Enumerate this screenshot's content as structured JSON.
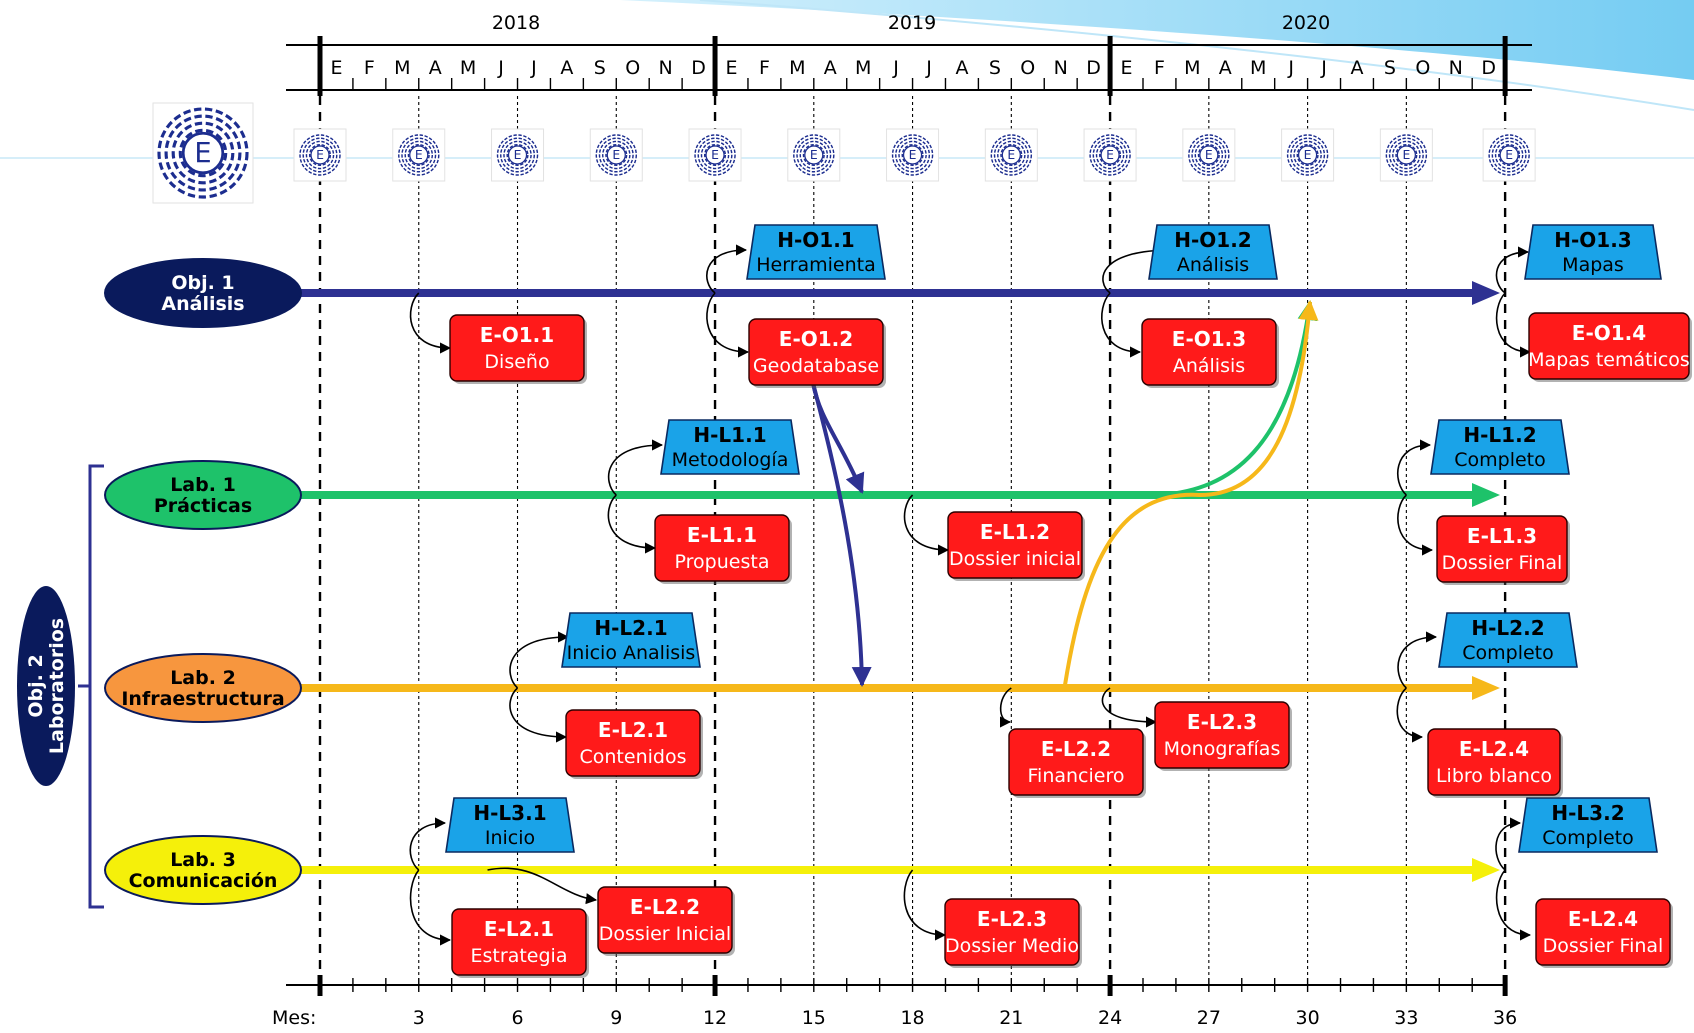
{
  "timeline": {
    "years": [
      "2018",
      "2019",
      "2020"
    ],
    "months": [
      "E",
      "F",
      "M",
      "A",
      "M",
      "J",
      "J",
      "A",
      "S",
      "O",
      "N",
      "D",
      "E",
      "F",
      "M",
      "A",
      "M",
      "J",
      "J",
      "A",
      "S",
      "O",
      "N",
      "D",
      "E",
      "F",
      "M",
      "A",
      "M",
      "J",
      "J",
      "A",
      "S",
      "O",
      "N",
      "D"
    ],
    "mes_label": "Mes:",
    "month_ticks": [
      "3",
      "6",
      "9",
      "12",
      "15",
      "18",
      "21",
      "24",
      "27",
      "30",
      "33",
      "36"
    ]
  },
  "logo": {
    "letter": "E"
  },
  "groups": {
    "obj2": {
      "line1": "Obj. 2",
      "line2": "Laboratorios",
      "color": "#0a1a5c"
    }
  },
  "lanes": [
    {
      "line1": "Obj. 1",
      "line2": "Análisis",
      "fill": "#0a1a5c",
      "text": "#ffffff",
      "arrow": "#2e3192"
    },
    {
      "line1": "Lab. 1",
      "line2": "Prácticas",
      "fill": "#1ec26a",
      "text": "#000000",
      "arrow": "#1ec26a"
    },
    {
      "line1": "Lab. 2",
      "line2": "Infraestructura",
      "fill": "#f7963e",
      "text": "#000000",
      "arrow": "#f6b81a"
    },
    {
      "line1": "Lab. 3",
      "line2": "Comunicación",
      "fill": "#f5f00a",
      "text": "#000000",
      "arrow": "#f5f00a"
    }
  ],
  "hitos": [
    {
      "code": "H-O1.1",
      "label": "Herramienta"
    },
    {
      "code": "H-O1.2",
      "label": "Análisis"
    },
    {
      "code": "H-O1.3",
      "label": "Mapas"
    },
    {
      "code": "H-L1.1",
      "label": "Metodología"
    },
    {
      "code": "H-L1.2",
      "label": "Completo"
    },
    {
      "code": "H-L2.1",
      "label": "Inicio Analisis"
    },
    {
      "code": "H-L2.2",
      "label": "Completo"
    },
    {
      "code": "H-L3.1",
      "label": "Inicio"
    },
    {
      "code": "H-L3.2",
      "label": "Completo"
    }
  ],
  "entregables": [
    {
      "code": "E-O1.1",
      "label": "Diseño"
    },
    {
      "code": "E-O1.2",
      "label": "Geodatabase"
    },
    {
      "code": "E-O1.3",
      "label": "Análisis"
    },
    {
      "code": "E-O1.4",
      "label": "Mapas temáticos"
    },
    {
      "code": "E-L1.1",
      "label": "Propuesta"
    },
    {
      "code": "E-L1.2",
      "label": "Dossier inicial"
    },
    {
      "code": "E-L1.3",
      "label": "Dossier Final"
    },
    {
      "code": "E-L2.1",
      "label": "Contenidos"
    },
    {
      "code": "E-L2.2",
      "label": "Financiero"
    },
    {
      "code": "E-L2.3",
      "label": "Monografías"
    },
    {
      "code": "E-L2.4",
      "label": "Libro blanco"
    },
    {
      "code": "E-L2.1",
      "label": "Estrategia"
    },
    {
      "code": "E-L2.2",
      "label": "Dossier Inicial"
    },
    {
      "code": "E-L2.3",
      "label": "Dossier Medio"
    },
    {
      "code": "E-L2.4",
      "label": "Dossier Final"
    }
  ],
  "colors": {
    "hito": "#1aa3e8",
    "entregable": "#ff1a1a",
    "light_blue": "#8ed3f5"
  }
}
